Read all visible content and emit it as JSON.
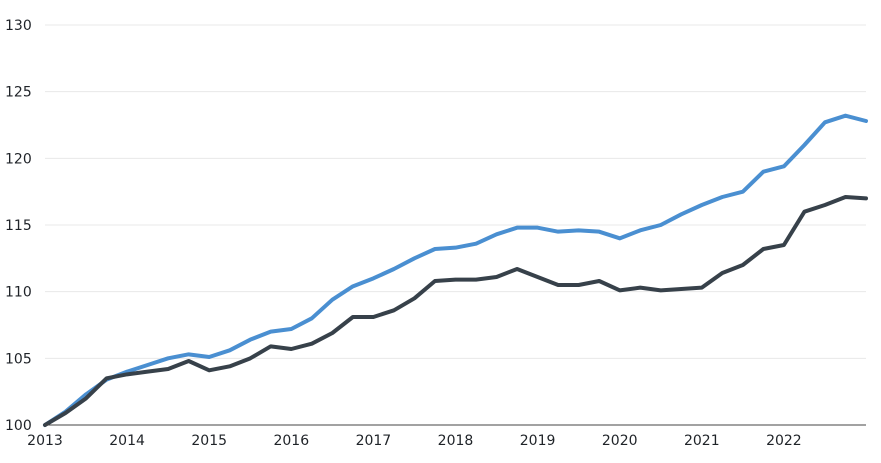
{
  "chart_data": {
    "type": "line",
    "title": "",
    "xlabel": "",
    "ylabel": "",
    "xlim": [
      2013.0,
      2023.0
    ],
    "ylim": [
      100,
      130
    ],
    "y_ticks": [
      100,
      105,
      110,
      115,
      120,
      125,
      130
    ],
    "x_ticks": [
      2013,
      2014,
      2015,
      2016,
      2017,
      2018,
      2019,
      2020,
      2021,
      2022
    ],
    "grid": true,
    "legend": "none",
    "series": [
      {
        "color": "#4a8fd1",
        "x": [
          2013.0,
          2013.25,
          2013.5,
          2013.75,
          2014.0,
          2014.25,
          2014.5,
          2014.75,
          2015.0,
          2015.25,
          2015.5,
          2015.75,
          2016.0,
          2016.25,
          2016.5,
          2016.75,
          2017.0,
          2017.25,
          2017.5,
          2017.75,
          2018.0,
          2018.25,
          2018.5,
          2018.75,
          2019.0,
          2019.25,
          2019.5,
          2019.75,
          2020.0,
          2020.25,
          2020.5,
          2020.75,
          2021.0,
          2021.25,
          2021.5,
          2021.75,
          2022.0,
          2022.25,
          2022.5,
          2022.75,
          2023.0
        ],
        "values": [
          100.0,
          101.0,
          102.3,
          103.4,
          104.0,
          104.5,
          105.0,
          105.3,
          105.1,
          105.6,
          106.4,
          107.0,
          107.2,
          108.0,
          109.4,
          110.4,
          111.0,
          111.7,
          112.5,
          113.2,
          113.3,
          113.6,
          114.3,
          114.8,
          114.8,
          114.5,
          114.6,
          114.5,
          114.0,
          114.6,
          115.0,
          115.8,
          116.5,
          117.1,
          117.5,
          119.0,
          119.4,
          121.0,
          122.7,
          123.2,
          122.8
        ]
      },
      {
        "color": "#37414a",
        "x": [
          2013.0,
          2013.25,
          2013.5,
          2013.75,
          2014.0,
          2014.25,
          2014.5,
          2014.75,
          2015.0,
          2015.25,
          2015.5,
          2015.75,
          2016.0,
          2016.25,
          2016.5,
          2016.75,
          2017.0,
          2017.25,
          2017.5,
          2017.75,
          2018.0,
          2018.25,
          2018.5,
          2018.75,
          2019.0,
          2019.25,
          2019.5,
          2019.75,
          2020.0,
          2020.25,
          2020.5,
          2020.75,
          2021.0,
          2021.25,
          2021.5,
          2021.75,
          2022.0,
          2022.25,
          2022.5,
          2022.75,
          2023.0
        ],
        "values": [
          100.0,
          100.9,
          102.0,
          103.5,
          103.8,
          104.0,
          104.2,
          104.8,
          104.1,
          104.4,
          105.0,
          105.9,
          105.7,
          106.1,
          106.9,
          108.1,
          108.1,
          108.6,
          109.5,
          110.8,
          110.9,
          110.9,
          111.1,
          111.7,
          111.1,
          110.5,
          110.5,
          110.8,
          110.1,
          110.3,
          110.1,
          110.2,
          110.3,
          111.4,
          112.0,
          113.2,
          113.5,
          116.0,
          116.5,
          117.1,
          117.0
        ]
      }
    ]
  }
}
